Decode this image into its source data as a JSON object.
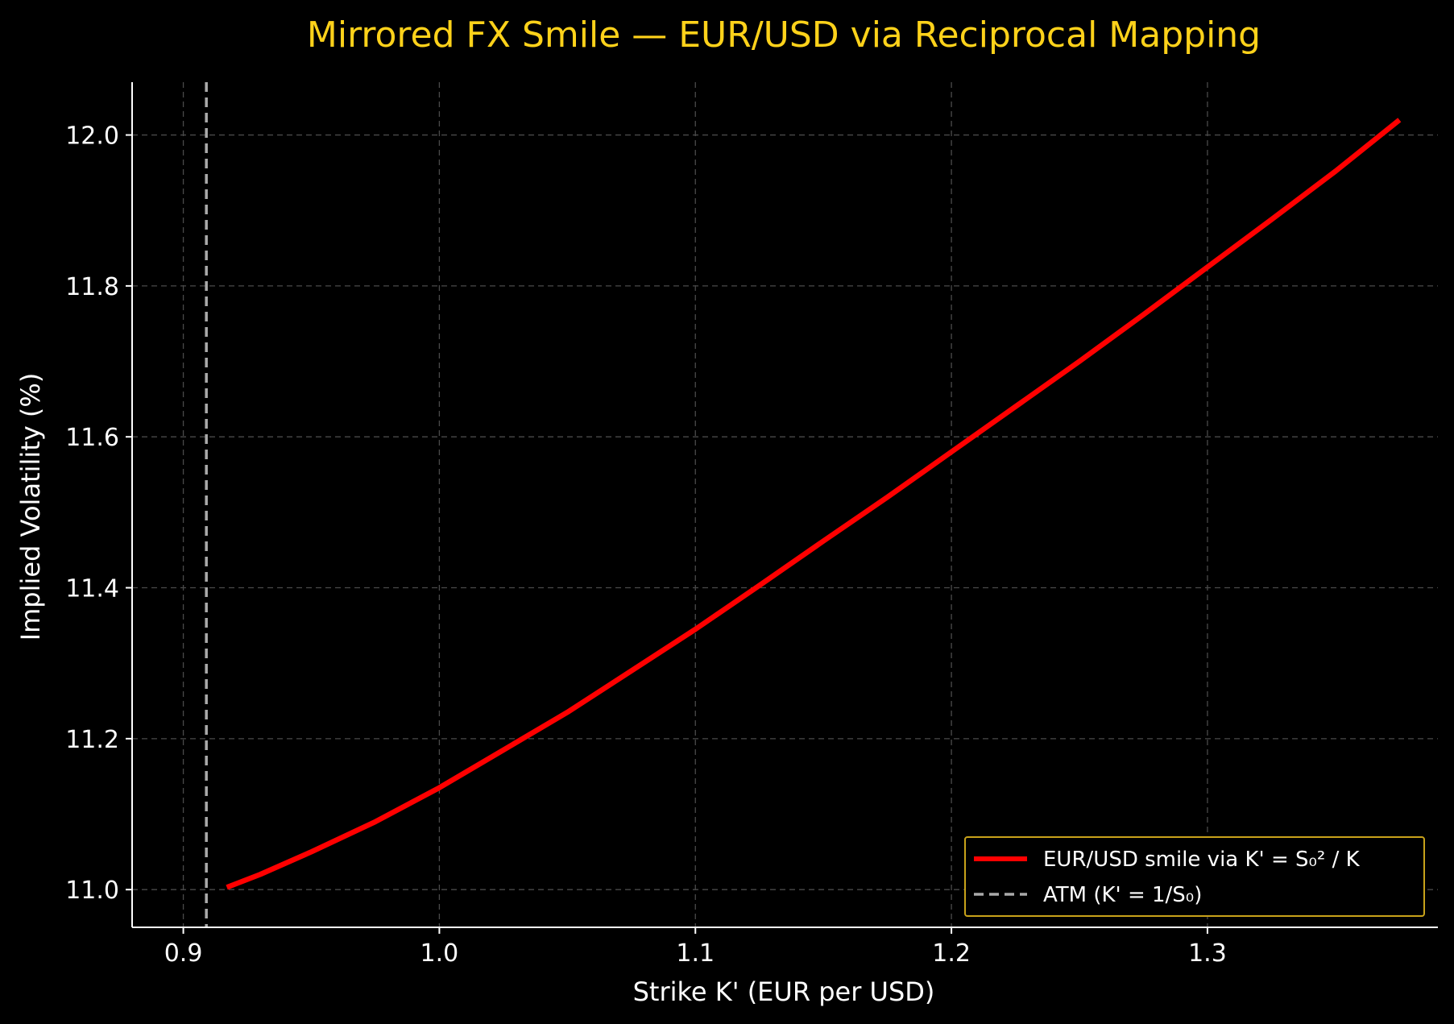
{
  "chart_data": {
    "type": "line",
    "title": "Mirrored FX Smile — EUR/USD via Reciprocal Mapping",
    "xlabel": "Strike K' (EUR per USD)",
    "ylabel": "Implied Volatility (%)",
    "xlim": [
      0.88,
      1.39
    ],
    "ylim": [
      10.95,
      12.07
    ],
    "xticks": [
      0.9,
      1.0,
      1.1,
      1.2,
      1.3
    ],
    "xtick_labels": [
      "0.9",
      "1.0",
      "1.1",
      "1.2",
      "1.3"
    ],
    "yticks": [
      11.0,
      11.2,
      11.4,
      11.6,
      11.8,
      12.0
    ],
    "ytick_labels": [
      "11.0",
      "11.2",
      "11.4",
      "11.6",
      "11.8",
      "12.0"
    ],
    "grid": true,
    "legend_position": "lower-right",
    "series": [
      {
        "name": "EUR/USD smile via K' = S₀² / K",
        "color": "#FF0000",
        "style": "solid",
        "x": [
          0.917,
          0.93,
          0.95,
          0.975,
          1.0,
          1.025,
          1.05,
          1.075,
          1.1,
          1.125,
          1.15,
          1.175,
          1.2,
          1.225,
          1.25,
          1.275,
          1.3,
          1.325,
          1.35,
          1.375
        ],
        "y": [
          11.003,
          11.02,
          11.05,
          11.09,
          11.135,
          11.185,
          11.235,
          11.29,
          11.345,
          11.403,
          11.462,
          11.52,
          11.58,
          11.64,
          11.7,
          11.762,
          11.825,
          11.888,
          11.952,
          12.02
        ]
      },
      {
        "name": "ATM (K' = 1/S₀)",
        "color": "#AAAAAA",
        "style": "dashed",
        "vline_x": 0.909
      }
    ]
  }
}
